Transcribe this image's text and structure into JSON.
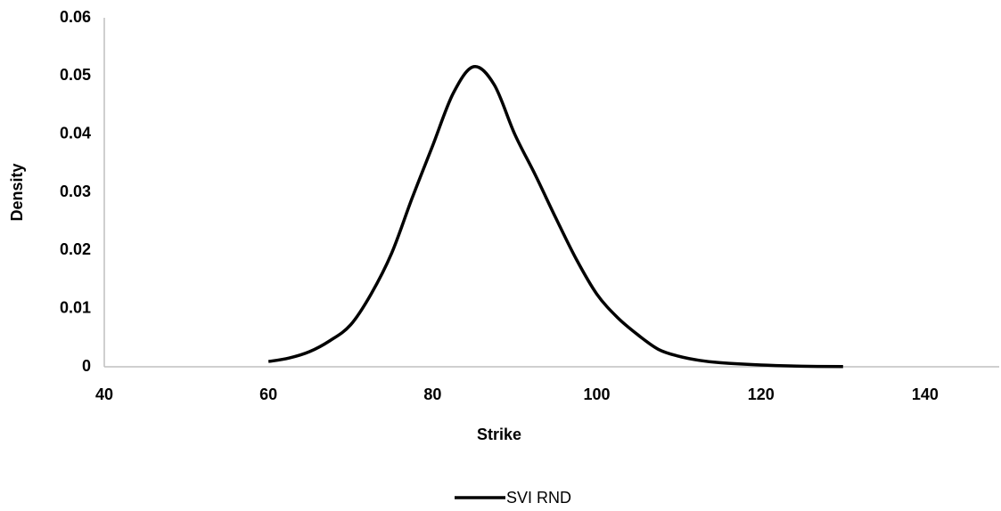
{
  "chart_data": {
    "type": "line",
    "x_label": "Strike",
    "y_label": "Density",
    "x": [
      60,
      62.5,
      65,
      67.5,
      70,
      72.5,
      75,
      77.5,
      80,
      82.5,
      85,
      87.5,
      90,
      92.5,
      95,
      97.5,
      100,
      102.5,
      105,
      107.5,
      110,
      112.5,
      115,
      120,
      125,
      130
    ],
    "series": [
      {
        "name": "SVI RND",
        "color": "#000000",
        "values": [
          0.0009,
          0.0015,
          0.0026,
          0.0045,
          0.0072,
          0.0125,
          0.0195,
          0.029,
          0.038,
          0.047,
          0.0516,
          0.0485,
          0.04,
          0.033,
          0.0256,
          0.0185,
          0.0125,
          0.0085,
          0.0055,
          0.003,
          0.0018,
          0.0011,
          0.0007,
          0.0003,
          0.0001,
          3e-05
        ]
      }
    ],
    "xlim": [
      40,
      150
    ],
    "xticks": [
      40,
      60,
      80,
      100,
      120,
      140
    ],
    "ylim": [
      0,
      0.06
    ],
    "yticks": [
      0,
      0.01,
      0.02,
      0.03,
      0.04,
      0.05,
      0.06
    ],
    "grid": false,
    "legend": "bottom"
  }
}
